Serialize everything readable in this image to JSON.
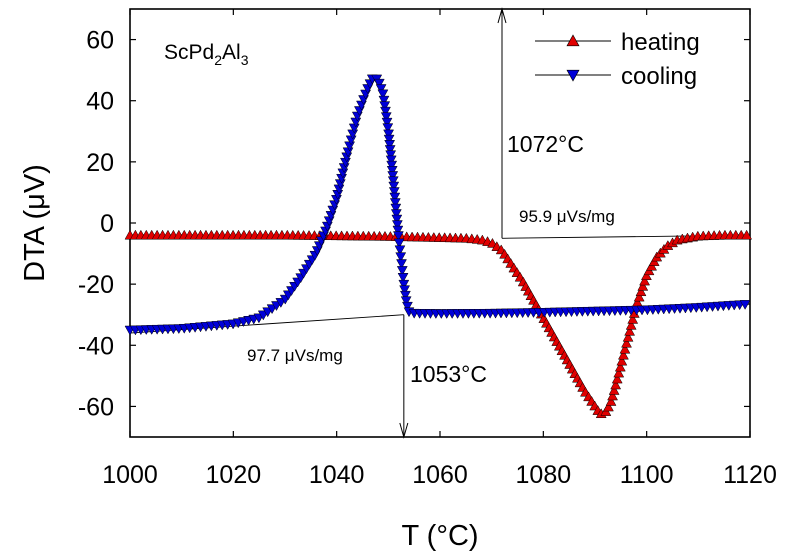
{
  "chart_data": {
    "type": "line",
    "xlabel": "T (°C)",
    "ylabel": "DTA (μV)",
    "xlim": [
      1000,
      1120
    ],
    "ylim": [
      -70,
      70
    ],
    "xticks": [
      1000,
      1020,
      1040,
      1060,
      1080,
      1100,
      1120
    ],
    "yticks": [
      60,
      40,
      20,
      0,
      -20,
      -40,
      -60
    ],
    "grid": false,
    "legend_position": "top-right",
    "sample": {
      "text": "ScPd",
      "sub1": "2",
      "mid": "Al",
      "sub2": "3"
    },
    "series": [
      {
        "name": "heating",
        "color": "#e00000",
        "marker": "triangle-up",
        "x": [
          1000,
          1010,
          1020,
          1030,
          1040,
          1050,
          1055,
          1060,
          1065,
          1068,
          1070,
          1072,
          1074,
          1076,
          1078,
          1080,
          1082,
          1084,
          1086,
          1088,
          1090,
          1091,
          1092,
          1093,
          1094,
          1096,
          1098,
          1100,
          1102,
          1104,
          1106,
          1110,
          1115,
          1120
        ],
        "y": [
          -4,
          -4,
          -4,
          -4,
          -4.2,
          -4.4,
          -4.6,
          -4.8,
          -5,
          -5.5,
          -6.5,
          -9,
          -14,
          -19,
          -25,
          -31,
          -37,
          -43,
          -49,
          -55,
          -60,
          -62.5,
          -62,
          -59,
          -53,
          -40,
          -27,
          -17,
          -11,
          -7.5,
          -5.5,
          -4.3,
          -4,
          -4
        ]
      },
      {
        "name": "cooling",
        "color": "#0000d8",
        "marker": "triangle-down",
        "x": [
          1000,
          1010,
          1020,
          1025,
          1030,
          1033,
          1036,
          1038,
          1040,
          1042,
          1044,
          1046,
          1047,
          1048,
          1049,
          1050,
          1051,
          1052,
          1053,
          1053.5,
          1054,
          1055,
          1060,
          1070,
          1080,
          1090,
          1100,
          1110,
          1120
        ],
        "y": [
          -35,
          -34.5,
          -33,
          -31,
          -25,
          -18,
          -10,
          -2,
          8,
          22,
          35,
          44,
          47.5,
          47,
          42,
          30,
          13,
          -5,
          -20,
          -26,
          -29,
          -29.5,
          -29.6,
          -29.5,
          -29.2,
          -28.8,
          -28.4,
          -27.6,
          -26.5
        ]
      }
    ],
    "annotations": [
      {
        "text": "1072°C",
        "x": 1072,
        "y": 70,
        "y_end": -5
      },
      {
        "text": "1053°C",
        "x": 1053,
        "y": -30,
        "y_end": -70
      },
      {
        "text": "95.9 μVs/mg",
        "x1": 1072,
        "y1": -5,
        "x2": 1120,
        "y2": -4
      },
      {
        "text": "97.7 μVs/mg",
        "x1": 1000,
        "y1": -36,
        "x2": 1053,
        "y2": -30
      }
    ]
  }
}
